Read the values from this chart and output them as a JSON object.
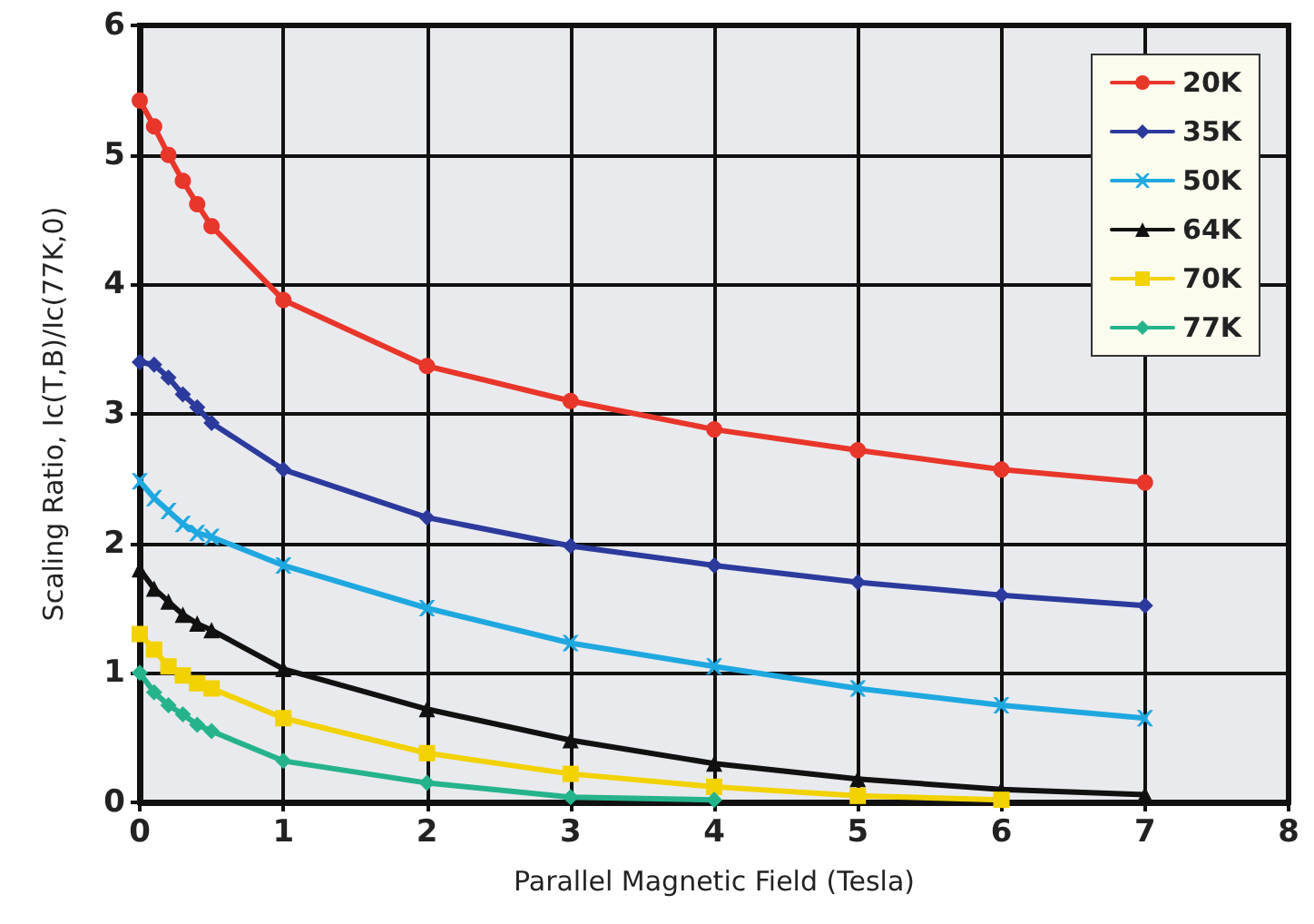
{
  "chart_data": {
    "type": "line",
    "xlabel": "Parallel Magnetic Field (Tesla)",
    "ylabel": "Scaling Ratio, Ic(T,B)/Ic(77K,0)",
    "xlim": [
      0,
      8
    ],
    "xticks": [
      0,
      1,
      2,
      3,
      4,
      5,
      6,
      7,
      8
    ],
    "ylim": [
      0,
      6
    ],
    "yticks": [
      0,
      1,
      2,
      3,
      4,
      5,
      6
    ],
    "grid": true,
    "legend": "top right",
    "x": [
      0,
      0.1,
      0.2,
      0.3,
      0.4,
      0.5,
      1,
      2,
      3,
      4,
      5,
      6,
      7
    ],
    "series": [
      {
        "name": "20K",
        "color": "#e8362a",
        "marker": "circle",
        "values": [
          5.42,
          5.22,
          5.0,
          4.8,
          4.62,
          4.45,
          3.88,
          3.37,
          3.1,
          2.88,
          2.72,
          2.57,
          2.47
        ]
      },
      {
        "name": "35K",
        "color": "#2b3a9c",
        "marker": "diamond",
        "values": [
          3.4,
          3.38,
          3.28,
          3.15,
          3.05,
          2.93,
          2.57,
          2.2,
          1.98,
          1.83,
          1.7,
          1.6,
          1.52
        ]
      },
      {
        "name": "50K",
        "color": "#1fa8e0",
        "marker": "cross",
        "values": [
          2.48,
          2.35,
          2.25,
          2.15,
          2.08,
          2.05,
          1.83,
          1.5,
          1.23,
          1.05,
          0.88,
          0.75,
          0.65
        ]
      },
      {
        "name": "64K",
        "color": "#111111",
        "marker": "triangle",
        "values": [
          1.8,
          1.65,
          1.55,
          1.45,
          1.38,
          1.33,
          1.03,
          0.72,
          0.48,
          0.3,
          0.18,
          0.1,
          0.06
        ]
      },
      {
        "name": "70K",
        "color": "#f2d200",
        "marker": "square",
        "values": [
          1.3,
          1.18,
          1.05,
          0.98,
          0.92,
          0.88,
          0.65,
          0.38,
          0.22,
          0.12,
          0.05,
          0.02,
          null
        ]
      },
      {
        "name": "77K",
        "color": "#25b38c",
        "marker": "diamond",
        "values": [
          1.0,
          0.85,
          0.75,
          0.68,
          0.6,
          0.55,
          0.32,
          0.15,
          0.04,
          0.02,
          null,
          null,
          null
        ]
      }
    ]
  }
}
